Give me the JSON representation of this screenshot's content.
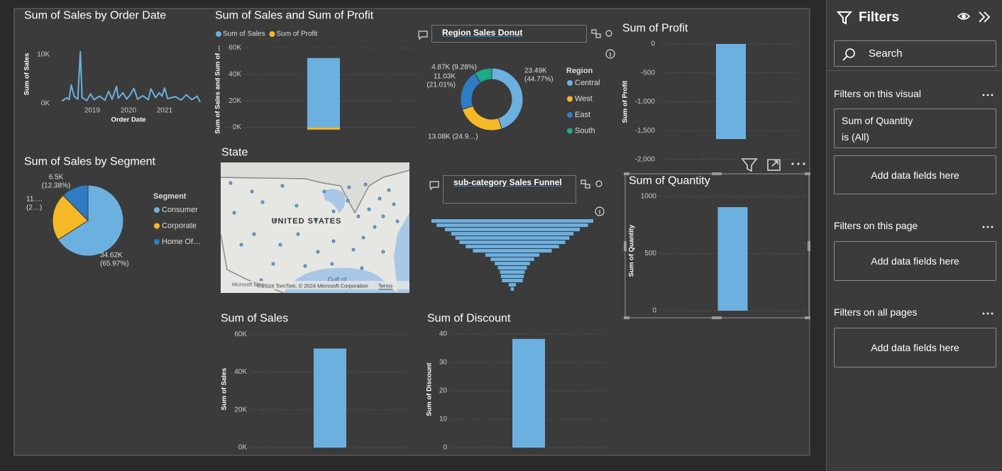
{
  "chart_data": [
    {
      "type": "line",
      "title": "Sum of Sales by Order Date",
      "x_label": "Order Date",
      "y_label": "Sum of Sales",
      "color": "#6cb0e0",
      "x": [
        2018.16,
        2018.3,
        2018.36,
        2018.42,
        2018.5,
        2018.6,
        2018.67,
        2018.72,
        2018.85,
        2018.95,
        2019.05,
        2019.2,
        2019.35,
        2019.45,
        2019.55,
        2019.67,
        2019.72,
        2019.85,
        2019.95,
        2020.05,
        2020.15,
        2020.25,
        2020.4,
        2020.55,
        2020.62,
        2020.75,
        2020.85,
        2020.93,
        2021.0,
        2021.08,
        2021.3,
        2021.45,
        2021.6,
        2021.75,
        2021.9,
        2021.98
      ],
      "values": [
        500,
        1200,
        800,
        3800,
        1500,
        900,
        10600,
        1200,
        600,
        2000,
        800,
        1500,
        700,
        2500,
        900,
        3500,
        1100,
        2200,
        900,
        1800,
        3100,
        900,
        1600,
        800,
        3000,
        1200,
        2200,
        1500,
        3200,
        1000,
        1400,
        700,
        1800,
        800,
        1500,
        300
      ],
      "xlim": [
        2018,
        2022
      ],
      "xticks": [
        2019,
        2020,
        2021
      ],
      "ylim": [
        0,
        12000
      ],
      "yticks": [
        {
          "value": 0,
          "label": "0K"
        },
        {
          "value": 10000,
          "label": "10K"
        }
      ]
    },
    {
      "type": "bar",
      "stacked": true,
      "title": "Sum of Sales and Sum of Profit",
      "y_label": "Sum of Sales and Sum of ...",
      "categories": [
        null
      ],
      "series": [
        {
          "name": "Sum of Sales",
          "color": "#6cb0e0",
          "values": [
            52480
          ]
        },
        {
          "name": "Sum of Profit",
          "color": "#f5b927",
          "values": [
            -1650
          ]
        }
      ],
      "ylim": [
        -5000,
        62000
      ],
      "yticks": [
        {
          "value": 0,
          "label": "0K"
        },
        {
          "value": 20000,
          "label": "20K"
        },
        {
          "value": 40000,
          "label": "40K"
        },
        {
          "value": 60000,
          "label": "60K"
        }
      ],
      "grid": true
    },
    {
      "type": "donut",
      "title": "Region Sales Donut",
      "legend_title": "Region",
      "categories": [
        "Central",
        "West",
        "East",
        "South"
      ],
      "colors": [
        "#6cb0e0",
        "#f5b927",
        "#2e7dc4",
        "#1aab8a"
      ],
      "values": [
        23490,
        13080,
        11030,
        4870
      ],
      "value_labels": [
        [
          "23.49K",
          "(44.77%)"
        ],
        [
          "13.08K (24.9…)"
        ],
        [
          "11.03K",
          "(21.01%)"
        ],
        [
          "4.87K (9.28%)"
        ]
      ]
    },
    {
      "type": "bar",
      "title": "Sum of Profit",
      "y_label": "Sum of Profit",
      "categories": [
        null
      ],
      "values": [
        -1645
      ],
      "color": "#6cb0e0",
      "ylim": [
        -2000,
        0
      ],
      "yticks": [
        0,
        -500,
        {
          "value": -1000,
          "label": "-1,000"
        },
        {
          "value": -1500,
          "label": "-1,500"
        },
        {
          "value": -2000,
          "label": "-2,000"
        }
      ],
      "grid": true
    },
    {
      "type": "pie",
      "title": "Sum of Sales by Segment",
      "legend_title": "Segment",
      "categories": [
        "Consumer",
        "Corporate",
        "Home Of…"
      ],
      "colors": [
        "#6cb0e0",
        "#f5b927",
        "#2e7dc4"
      ],
      "values": [
        34620,
        11360,
        6500
      ],
      "value_labels": [
        [
          "34.62K",
          "(65.97%)"
        ],
        [
          "11.…",
          "(2…)"
        ],
        [
          "6.5K",
          "(12.38%)"
        ]
      ]
    },
    {
      "type": "map",
      "title": "State",
      "labels": {
        "country": "UNITED STATES",
        "gulf": "Gulf of",
        "brand": "Microsoft Bing",
        "copyright": "© 2024 TomTom, © 2024 Microsoft Corporation",
        "terms": "Terms"
      }
    },
    {
      "type": "funnel",
      "title": "sub-category Sales Funnel",
      "color": "#6cb0e0",
      "values": [
        7800,
        7300,
        6500,
        5900,
        5500,
        5100,
        4500,
        3800,
        2600,
        2100,
        1700,
        1400,
        1200,
        1100,
        1000,
        350,
        150
      ]
    },
    {
      "type": "bar",
      "title": "Sum of Sales",
      "y_label": "Sum of Sales",
      "categories": [
        null
      ],
      "values": [
        52480
      ],
      "color": "#6cb0e0",
      "ylim": [
        0,
        62000
      ],
      "yticks": [
        {
          "value": 0,
          "label": "0K"
        },
        {
          "value": 20000,
          "label": "20K"
        },
        {
          "value": 40000,
          "label": "40K"
        },
        {
          "value": 60000,
          "label": "60K"
        }
      ],
      "grid": true
    },
    {
      "type": "bar",
      "title": "Sum of Discount",
      "y_label": "Sum of Discount",
      "categories": [
        null
      ],
      "values": [
        38.3
      ],
      "color": "#6cb0e0",
      "ylim": [
        0,
        41
      ],
      "yticks": [
        0,
        10,
        20,
        30,
        40
      ],
      "grid": true
    },
    {
      "type": "bar",
      "title": "Sum of Quantity",
      "y_label": "Sum of Quantity",
      "categories": [
        null
      ],
      "values": [
        907
      ],
      "color": "#6cb0e0",
      "ylim": [
        0,
        1050
      ],
      "yticks": [
        0,
        500,
        1000
      ],
      "grid": true
    }
  ],
  "filters_pane": {
    "title": "Filters",
    "search": "Search",
    "sections": [
      {
        "title": "Filters on this visual",
        "card": [
          "Sum of Quantity",
          "is (All)"
        ],
        "placeholder": "Add data fields here"
      },
      {
        "title": "Filters on this page",
        "placeholder": "Add data fields here"
      },
      {
        "title": "Filters on all pages",
        "placeholder": "Add data fields here"
      }
    ]
  }
}
